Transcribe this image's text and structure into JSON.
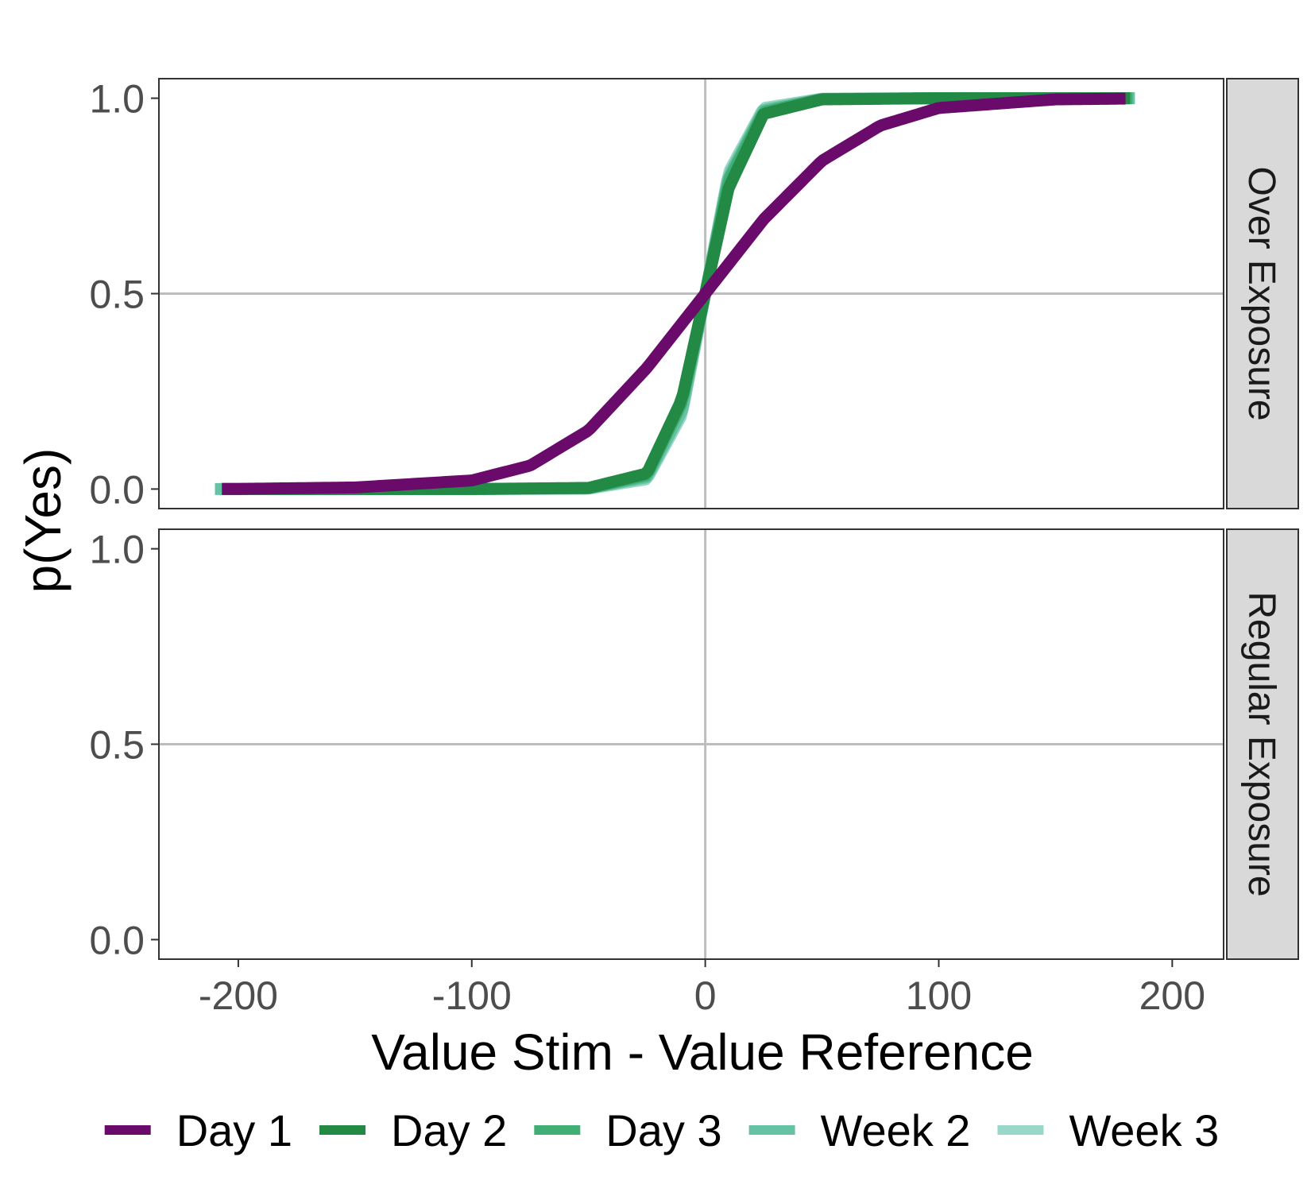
{
  "chart_data": {
    "type": "line",
    "xlabel": "Value Stim - Value Reference",
    "ylabel": "p(Yes)",
    "xlim": [
      -234,
      222
    ],
    "ylim": [
      -0.05,
      1.05
    ],
    "x_ticks": [
      -200,
      -100,
      0,
      100,
      200
    ],
    "x_tick_labels": [
      "-200",
      "-100",
      "0",
      "100",
      "200"
    ],
    "y_ticks": [
      0,
      0.5,
      1
    ],
    "y_tick_labels": [
      "0.0",
      "0.5",
      "1.0"
    ],
    "reference_lines": {
      "x": 0,
      "y": 0.5
    },
    "grid": false,
    "legend_position": "bottom",
    "panels": [
      {
        "name": "Over Exposure",
        "series": [
          {
            "name": "Day 1",
            "color": "#6a0a6a",
            "x_range": [
              -207,
              180
            ],
            "points": [
              [
                -200,
                0.0004
              ],
              [
                -150,
                0.004
              ],
              [
                -100,
                0.022
              ],
              [
                -75,
                0.06
              ],
              [
                -50,
                0.15
              ],
              [
                -25,
                0.31
              ],
              [
                0,
                0.5
              ],
              [
                25,
                0.69
              ],
              [
                50,
                0.84
              ],
              [
                75,
                0.93
              ],
              [
                100,
                0.975
              ],
              [
                150,
                0.997
              ],
              [
                180,
                0.999
              ]
            ]
          },
          {
            "name": "Day 2",
            "color": "#228a44",
            "x_range": [
              -207,
              182
            ],
            "points": [
              [
                -200,
                0
              ],
              [
                -100,
                0.0001
              ],
              [
                -50,
                0.003
              ],
              [
                -25,
                0.04
              ],
              [
                -10,
                0.23
              ],
              [
                0,
                0.5
              ],
              [
                10,
                0.77
              ],
              [
                25,
                0.96
              ],
              [
                50,
                0.997
              ],
              [
                100,
                1
              ],
              [
                182,
                1
              ]
            ]
          },
          {
            "name": "Day 3",
            "color": "#41ae76",
            "x_range": [
              -207,
              183
            ],
            "points": [
              [
                -200,
                0
              ],
              [
                -100,
                0.0001
              ],
              [
                -50,
                0.002
              ],
              [
                -25,
                0.035
              ],
              [
                -10,
                0.22
              ],
              [
                0,
                0.5
              ],
              [
                10,
                0.79
              ],
              [
                25,
                0.965
              ],
              [
                50,
                0.998
              ],
              [
                100,
                1
              ],
              [
                183,
                1
              ]
            ]
          },
          {
            "name": "Week 2",
            "color": "#66c2a4",
            "x_range": [
              -210,
              184
            ],
            "points": [
              [
                -200,
                0
              ],
              [
                -100,
                0.0001
              ],
              [
                -50,
                0.0015
              ],
              [
                -25,
                0.03
              ],
              [
                -10,
                0.2
              ],
              [
                0,
                0.5
              ],
              [
                10,
                0.8
              ],
              [
                25,
                0.97
              ],
              [
                50,
                0.998
              ],
              [
                100,
                1
              ],
              [
                184,
                1
              ]
            ]
          },
          {
            "name": "Week 3",
            "color": "#99d8c9",
            "x_range": [
              -208,
              184
            ],
            "points": [
              [
                -200,
                0
              ],
              [
                -100,
                0.0001
              ],
              [
                -50,
                0.001
              ],
              [
                -25,
                0.025
              ],
              [
                -10,
                0.19
              ],
              [
                0,
                0.5
              ],
              [
                10,
                0.81
              ],
              [
                25,
                0.975
              ],
              [
                50,
                0.999
              ],
              [
                100,
                1
              ],
              [
                184,
                1
              ]
            ]
          }
        ]
      },
      {
        "name": "Regular Exposure",
        "series": []
      }
    ],
    "legend": [
      {
        "name": "Day 1",
        "color": "#6a0a6a"
      },
      {
        "name": "Day 2",
        "color": "#228a44"
      },
      {
        "name": "Day 3",
        "color": "#41ae76"
      },
      {
        "name": "Week 2",
        "color": "#66c2a4"
      },
      {
        "name": "Week 3",
        "color": "#99d8c9"
      }
    ]
  }
}
